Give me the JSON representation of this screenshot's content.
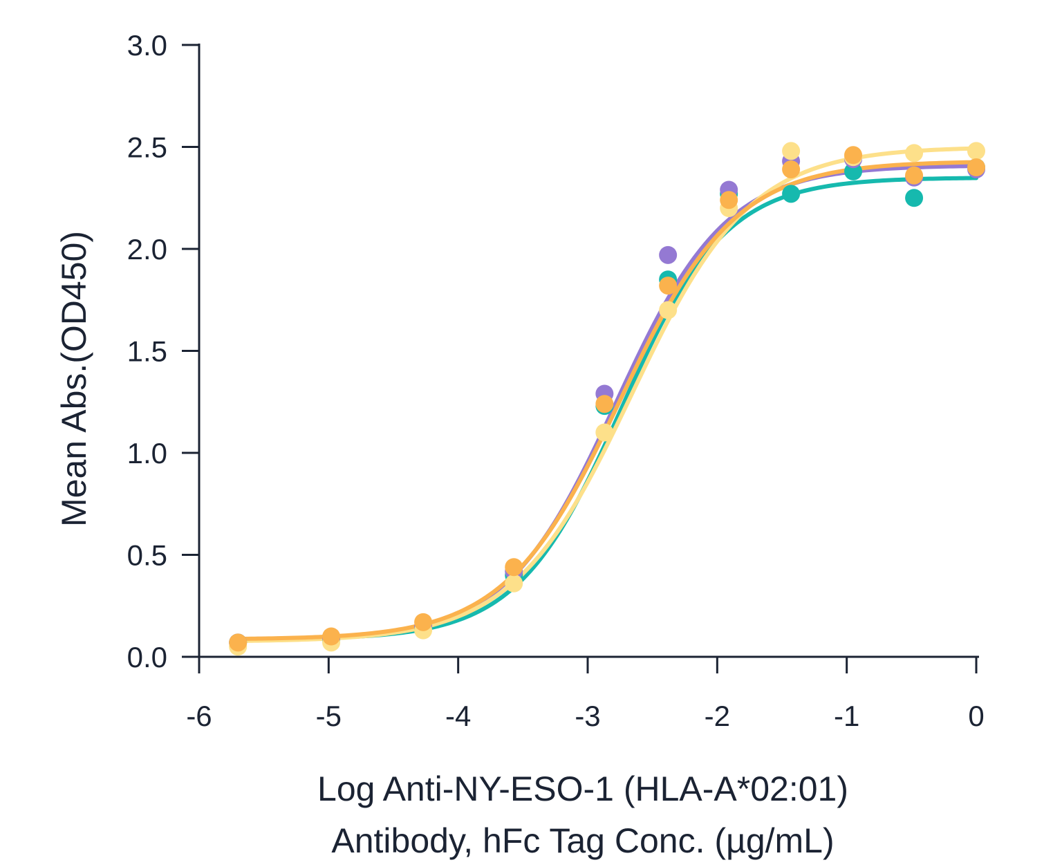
{
  "chart_data": {
    "type": "scatter",
    "title": "",
    "xlabel_lines": [
      "Log Anti-NY-ESO-1 (HLA-A*02:01)",
      "Antibody, hFc Tag Conc. (µg/mL)"
    ],
    "ylabel": "Mean Abs.(OD450)",
    "xlim": [
      -6,
      0
    ],
    "ylim": [
      0,
      3
    ],
    "xticks": [
      -6,
      -5,
      -4,
      -3,
      -2,
      -1,
      0
    ],
    "xtick_labels": [
      "-6",
      "-5",
      "-4",
      "-3",
      "-2",
      "-1",
      "0"
    ],
    "yticks": [
      0,
      0.5,
      1,
      1.5,
      2,
      2.5,
      3
    ],
    "ytick_labels": [
      "0.0",
      "0.5",
      "1.0",
      "1.5",
      "2.0",
      "2.5",
      "3.0"
    ],
    "grid": false,
    "legend": "none",
    "x": [
      -5.7,
      -4.98,
      -4.27,
      -3.57,
      -2.87,
      -2.38,
      -1.91,
      -1.43,
      -0.95,
      -0.48,
      0.0
    ],
    "series": [
      {
        "color": "#16b9ae",
        "values": [
          0.07,
          0.08,
          0.14,
          0.4,
          1.23,
          1.85,
          2.27,
          2.27,
          2.38,
          2.25,
          2.4
        ],
        "fit": {
          "bottom": 0.085,
          "top": 2.35,
          "logEC50": -2.74,
          "hill": 1.08
        }
      },
      {
        "color": "#9479d3",
        "values": [
          0.07,
          0.09,
          0.15,
          0.42,
          1.29,
          1.97,
          2.29,
          2.43,
          2.44,
          2.35,
          2.39
        ],
        "fit": {
          "bottom": 0.085,
          "top": 2.41,
          "logEC50": -2.78,
          "hill": 1.02
        }
      },
      {
        "color": "#fde08a",
        "values": [
          0.05,
          0.07,
          0.13,
          0.36,
          1.1,
          1.7,
          2.2,
          2.48,
          2.45,
          2.47,
          2.48
        ],
        "fit": {
          "bottom": 0.075,
          "top": 2.5,
          "logEC50": -2.66,
          "hill": 0.95
        }
      },
      {
        "color": "#fbb24d",
        "values": [
          0.07,
          0.1,
          0.17,
          0.44,
          1.24,
          1.82,
          2.24,
          2.39,
          2.46,
          2.36,
          2.4
        ],
        "fit": {
          "bottom": 0.085,
          "top": 2.43,
          "logEC50": -2.75,
          "hill": 0.98
        }
      }
    ]
  }
}
